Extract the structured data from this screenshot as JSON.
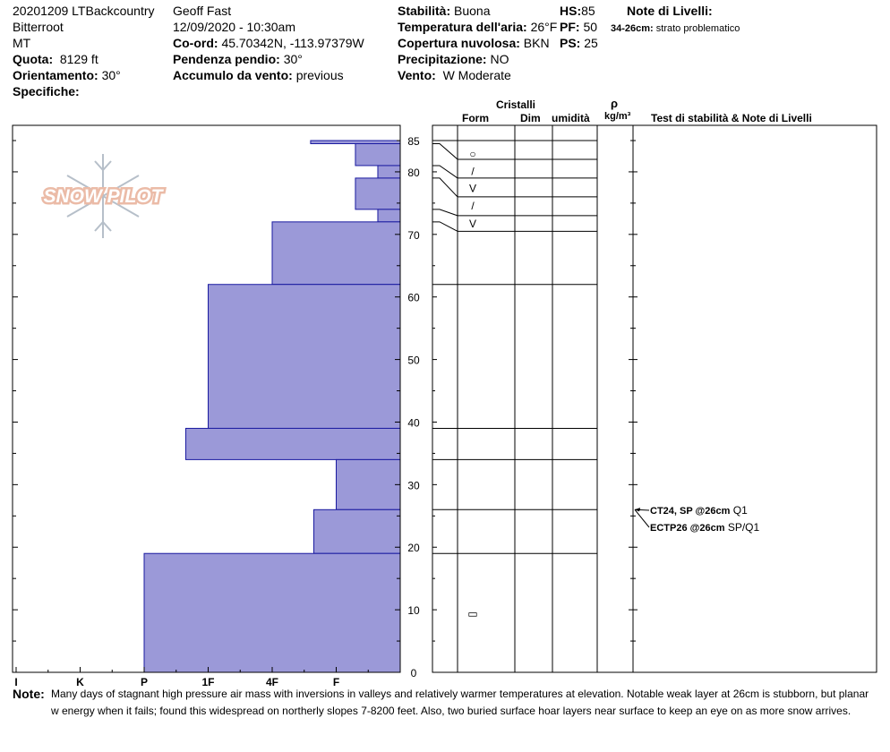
{
  "header": {
    "col1": {
      "line1": "20201209 LTBackcountry",
      "line2": "Bitterroot",
      "line3": "MT",
      "quota_label": "Quota:",
      "quota_value": "8129 ft",
      "orient_label": "Orientamento:",
      "orient_value": "30°",
      "spec_label": "Specifiche:"
    },
    "col2": {
      "observer": "Geoff Fast",
      "datetime": "12/09/2020 - 10:30am",
      "coord_label": "Co-ord:",
      "coord_value": "45.70342N, -113.97379W",
      "slope_label": "Pendenza pendio:",
      "slope_value": "30°",
      "wind_label": "Accumulo da vento:",
      "wind_value": "previous"
    },
    "col3": {
      "stab_label": "Stabilità:",
      "stab_value": "Buona",
      "temp_label": "Temperatura dell'aria:",
      "temp_value": "26°F",
      "cloud_label": "Copertura nuvolosa:",
      "cloud_value": "BKN",
      "precip_label": "Precipitazione:",
      "precip_value": "NO",
      "vento_label": "Vento:",
      "vento_value": "W Moderate"
    },
    "col4": {
      "hs_label": "HS:",
      "hs_value": "85",
      "pf_label": "PF:",
      "pf_value": "50",
      "ps_label": "PS:",
      "ps_value": "25"
    },
    "layer_notes": {
      "title": "Note di Livelli:",
      "range": "34-26cm:",
      "text": "strato problematico"
    }
  },
  "columns": {
    "cristalli": "Cristalli",
    "form": "Form",
    "dim": "Dim",
    "umidita": "umidità",
    "rho": "ρ",
    "density_unit": "kg/m³",
    "tests": "Test di stabilità & Note di Livelli"
  },
  "logo": {
    "text": "SNOW PILOT"
  },
  "tests": [
    {
      "test": "CT24, SP @26cm",
      "quality": "Q1",
      "depth": 26
    },
    {
      "test": "ECTP26 @26cm",
      "quality": "SP/Q1",
      "depth": 26
    }
  ],
  "footer": {
    "label": "Note:",
    "line1": "Many days of stagnant high pressure air mass with inversions in valleys and relatively warmer temperatures at elevation. Notable weak layer at 26cm is stubborn, but planar",
    "line2": "w energy when it fails; found this widespread on northerly slopes 7-8200 feet. Also, two buried surface hoar layers near surface to keep an eye on as more snow arrives."
  },
  "colors": {
    "hardness_fill": "#9b99d8",
    "hardness_stroke": "#1a1aa0",
    "grid": "#000000",
    "logo": "#e8b098"
  },
  "chart_data": {
    "type": "bar",
    "orientation": "horizontal",
    "x_axis": {
      "ticks": [
        "I",
        "K",
        "P",
        "1F",
        "4F",
        "F"
      ],
      "reversed": true
    },
    "y_axis": {
      "ticks": [
        0,
        10,
        20,
        30,
        40,
        50,
        60,
        70,
        80,
        85
      ],
      "range": [
        0,
        85
      ],
      "unit": "cm"
    },
    "hardness_scale": {
      "F": 1,
      "4F": 2,
      "1F": 3,
      "P": 4,
      "K": 5,
      "I": 6
    },
    "layers": [
      {
        "top": 85,
        "bottom": 84.5,
        "hardness": 1.4
      },
      {
        "top": 84.5,
        "bottom": 81,
        "hardness": 0.7
      },
      {
        "top": 81,
        "bottom": 79,
        "hardness": 0.35
      },
      {
        "top": 79,
        "bottom": 74,
        "hardness": 0.7
      },
      {
        "top": 74,
        "bottom": 72,
        "hardness": 0.35
      },
      {
        "top": 72,
        "bottom": 62,
        "hardness": 2.0
      },
      {
        "top": 62,
        "bottom": 39,
        "hardness": 3.0
      },
      {
        "top": 39,
        "bottom": 34,
        "hardness": 3.35
      },
      {
        "top": 34,
        "bottom": 26,
        "hardness": 1.0
      },
      {
        "top": 26,
        "bottom": 19,
        "hardness": 1.35
      },
      {
        "top": 19,
        "bottom": 0,
        "hardness": 4.0
      }
    ],
    "crystal_layers": [
      85,
      82,
      79,
      76,
      73,
      70.5,
      62,
      39,
      34,
      26,
      19
    ],
    "grains": [
      {
        "depth": 83,
        "symbol": "○"
      },
      {
        "depth": 80.2,
        "symbol": "/"
      },
      {
        "depth": 77.5,
        "symbol": "V"
      },
      {
        "depth": 74.7,
        "symbol": "/"
      },
      {
        "depth": 71.8,
        "symbol": "V"
      },
      {
        "depth": 9.5,
        "symbol": "▭"
      }
    ]
  }
}
